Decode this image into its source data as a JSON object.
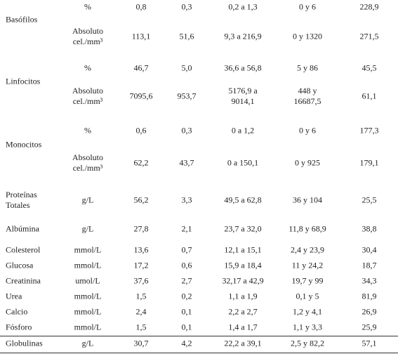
{
  "table": {
    "groups": [
      {
        "name": "Basófilos",
        "rows": [
          {
            "unit": "%",
            "cells": [
              "0,8",
              "0,3",
              "0,2 a 1,3",
              "0 y 6",
              "228,9"
            ]
          },
          {
            "unit": "Absoluto\ncel./mm³",
            "cells": [
              "113,1",
              "51,6",
              "9,3 a 216,9",
              "0 y 1320",
              "271,5"
            ]
          }
        ]
      },
      {
        "name": "Linfocitos",
        "rows": [
          {
            "unit": "%",
            "cells": [
              "46,7",
              "5,0",
              "36,6 a 56,8",
              "5 y 86",
              "45,5"
            ]
          },
          {
            "unit": "Absoluto\ncel./mm³",
            "cells": [
              "7095,6",
              "953,7",
              "5176,9 a\n9014,1",
              "448 y\n16687,5",
              "61,1"
            ]
          }
        ]
      },
      {
        "name": "Monocitos",
        "rows": [
          {
            "unit": "%",
            "cells": [
              "0,6",
              "0,3",
              "0 a 1,2",
              "0 y 6",
              "177,3"
            ]
          },
          {
            "unit": "Absoluto\ncel./mm³",
            "cells": [
              "62,2",
              "43,7",
              "0 a 150,1",
              "0 y 925",
              "179,1"
            ]
          }
        ]
      },
      {
        "name": "Proteínas\nTotales",
        "rows": [
          {
            "unit": "g/L",
            "cells": [
              "56,2",
              "3,3",
              "49,5 a 62,8",
              "36 y 104",
              "25,5"
            ]
          }
        ]
      },
      {
        "name": "Albúmina",
        "rows": [
          {
            "unit": "g/L",
            "cells": [
              "27,8",
              "2,1",
              "23,7 a 32,0",
              "11,8 y 68,9",
              "38,8"
            ]
          }
        ]
      },
      {
        "name": "Colesterol",
        "rows": [
          {
            "unit": "mmol/L",
            "cells": [
              "13,6",
              "0,7",
              "12,1 a 15,1",
              "2,4 y 23,9",
              "30,4"
            ]
          }
        ]
      },
      {
        "name": "Glucosa",
        "rows": [
          {
            "unit": "mmol/L",
            "cells": [
              "17,2",
              "0,6",
              "15,9 a 18,4",
              "11 y 24,2",
              "18,7"
            ]
          }
        ]
      },
      {
        "name": "Creatinina",
        "rows": [
          {
            "unit": "umol/L",
            "cells": [
              "37,6",
              "2,7",
              "32,17 a 42,9",
              "19,7 y 99",
              "34,3"
            ]
          }
        ]
      },
      {
        "name": "Urea",
        "rows": [
          {
            "unit": "mmol/L",
            "cells": [
              "1,5",
              "0,2",
              "1,1 a 1,9",
              "0,1 y 5",
              "81,9"
            ]
          }
        ]
      },
      {
        "name": "Calcio",
        "rows": [
          {
            "unit": "mmol/L",
            "cells": [
              "2,4",
              "0,1",
              "2,2 a 2,7",
              "1,2 y 4,1",
              "26,9"
            ]
          }
        ]
      },
      {
        "name": "Fósforo",
        "rows": [
          {
            "unit": "mmol/L",
            "cells": [
              "1,5",
              "0,1",
              "1,4 a 1,7",
              "1,1 y 3,3",
              "25,9"
            ]
          }
        ]
      },
      {
        "name": "Globulinas",
        "rows": [
          {
            "unit": "g/L",
            "cells": [
              "30,7",
              "4,2",
              "22,2 a 39,1",
              "2,5 y 82,2",
              "57,1"
            ]
          }
        ]
      }
    ]
  }
}
